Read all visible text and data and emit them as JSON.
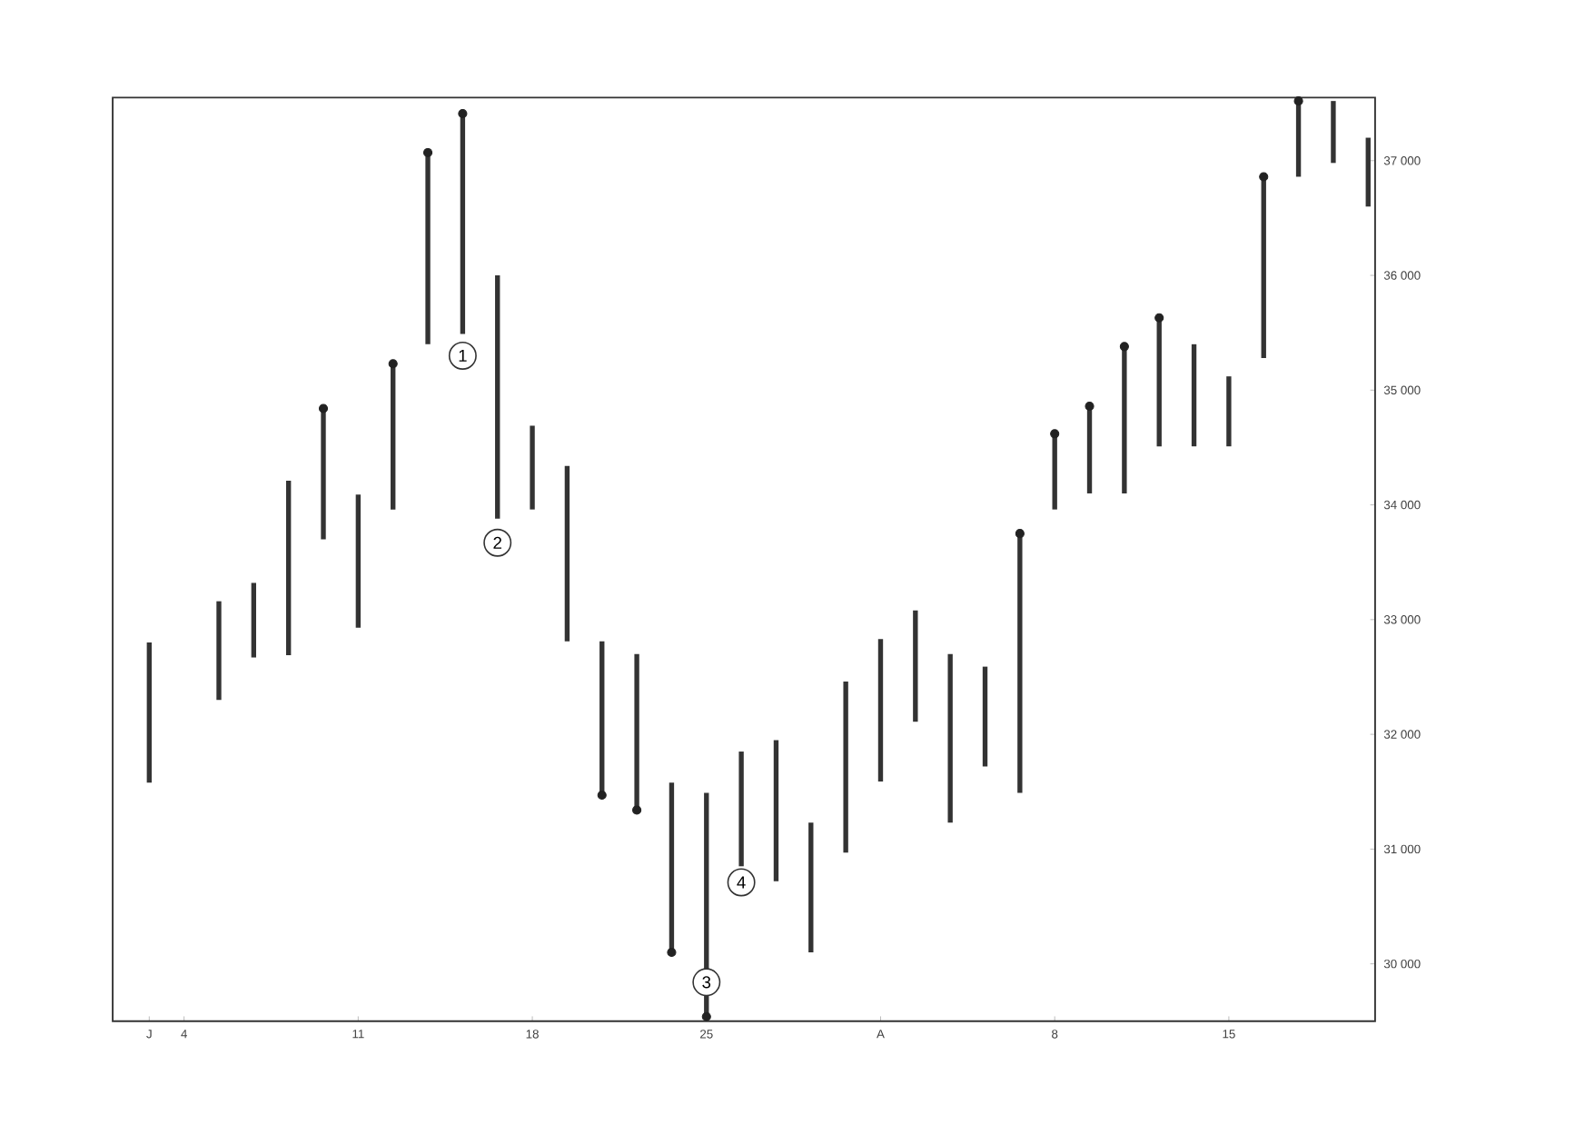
{
  "chart_data": {
    "type": "bar",
    "categories": [
      "J",
      "4",
      null,
      null,
      null,
      null,
      "11",
      null,
      null,
      null,
      null,
      "18",
      null,
      null,
      null,
      null,
      "25",
      null,
      null,
      null,
      null,
      "A",
      null,
      null,
      null,
      null,
      "8",
      null,
      null,
      null,
      null,
      "15",
      null,
      null,
      null,
      null
    ],
    "series": [
      {
        "color": "#333333",
        "base": [
          31580,
          null,
          32300,
          32670,
          32690,
          33700,
          32930,
          33960,
          35400,
          35490,
          33880,
          33960,
          32810,
          31470,
          31340,
          30100,
          29540,
          30850,
          30720,
          30100,
          30970,
          31590,
          32110,
          31230,
          31720,
          31490,
          33960,
          34100,
          34100,
          34510,
          34510,
          34510,
          35280,
          36860,
          36980,
          36600
        ],
        "values": [
          1220,
          null,
          860,
          650,
          1520,
          1140,
          1160,
          1270,
          1670,
          1920,
          2120,
          730,
          1530,
          1340,
          1360,
          1480,
          1950,
          1000,
          1230,
          1130,
          1490,
          1240,
          970,
          1470,
          870,
          2260,
          660,
          760,
          1280,
          1120,
          890,
          610,
          1580,
          660,
          540,
          600
        ]
      },
      {
        "type": "scatter",
        "color": "#222222",
        "values": [
          null,
          null,
          null,
          null,
          null,
          34840,
          null,
          35230,
          37070,
          37410,
          null,
          null,
          null,
          31470,
          31340,
          30100,
          29540,
          null,
          null,
          null,
          null,
          null,
          null,
          null,
          null,
          33750,
          34620,
          34860,
          35380,
          35630,
          null,
          null,
          36860,
          37520,
          null,
          null
        ]
      }
    ],
    "annotations": [
      {
        "text": "1",
        "y": 35300
      },
      {
        "text": "2",
        "y": 33670
      },
      {
        "text": "3",
        "x": "25",
        "y": 29840
      },
      {
        "text": "4",
        "y": 30710
      }
    ],
    "marker": "circle",
    "ylim": [
      29500,
      37550
    ],
    "yticks": [
      {
        "value": 30000,
        "label": "30 000"
      },
      {
        "value": 31000,
        "label": "31 000"
      },
      {
        "value": 32000,
        "label": "32 000"
      },
      {
        "value": 33000,
        "label": "33 000"
      },
      {
        "value": 34000,
        "label": "34 000"
      },
      {
        "value": 35000,
        "label": "35 000"
      },
      {
        "value": 36000,
        "label": "36 000"
      },
      {
        "value": 37000,
        "label": "37 000"
      }
    ]
  }
}
